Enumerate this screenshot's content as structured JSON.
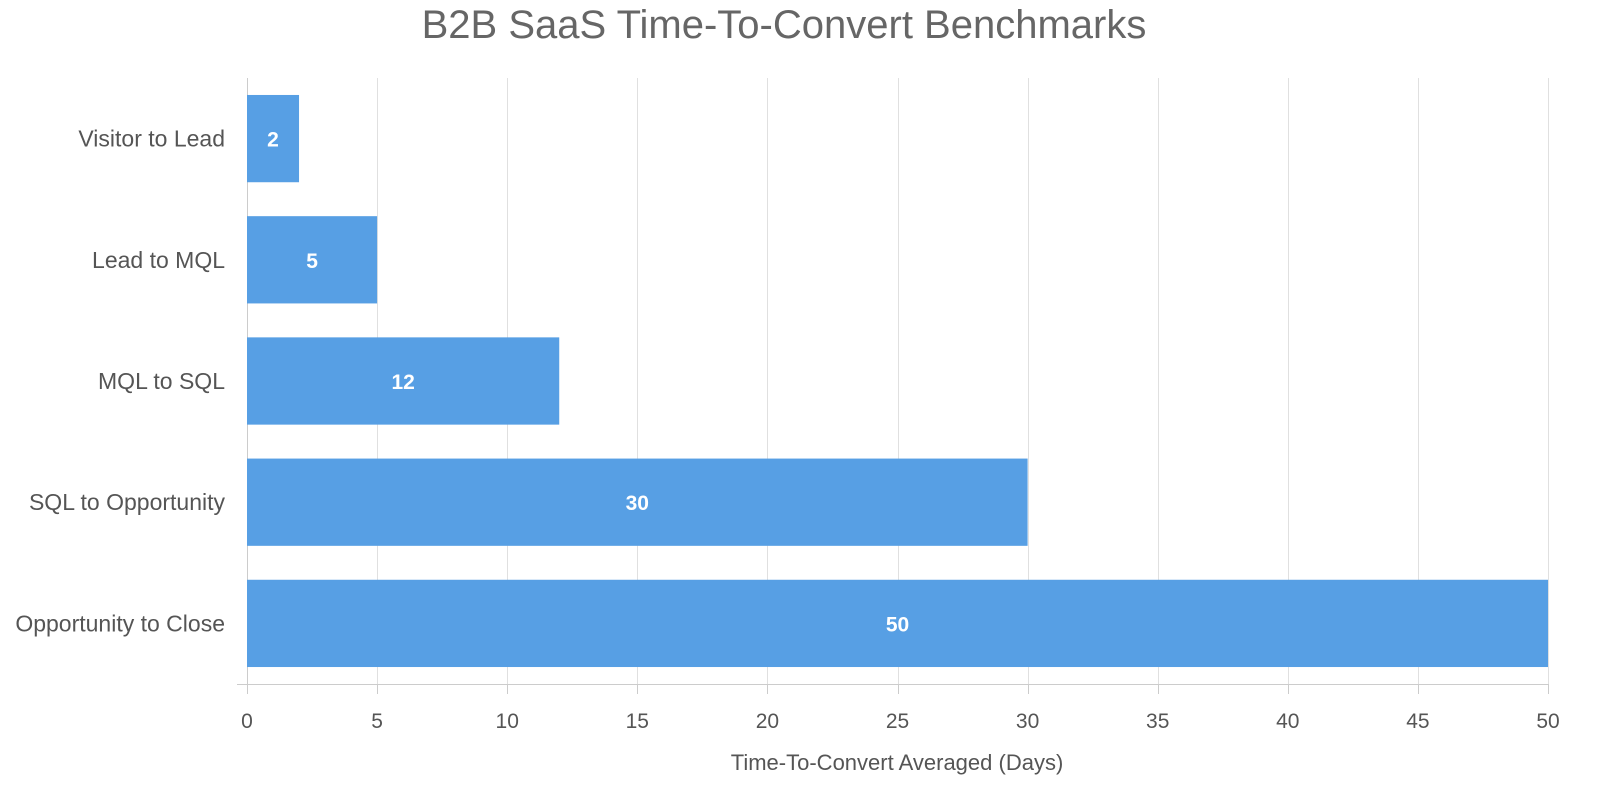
{
  "chart_data": {
    "type": "bar",
    "orientation": "horizontal",
    "title": "B2B SaaS Time-To-Convert Benchmarks",
    "xlabel": "Time-To-Convert Averaged (Days)",
    "ylabel": "",
    "categories": [
      "Visitor to Lead",
      "Lead to MQL",
      "MQL to SQL",
      "SQL to Opportunity",
      "Opportunity to Close"
    ],
    "values": [
      2,
      5,
      12,
      30,
      50
    ],
    "value_labels": [
      "2",
      "5",
      "12",
      "30",
      "50"
    ],
    "xlim": [
      0,
      50
    ],
    "x_ticks": [
      0,
      5,
      10,
      15,
      20,
      25,
      30,
      35,
      40,
      45,
      50
    ],
    "grid": true,
    "legend": "none",
    "colors": {
      "bar": "#579fe4",
      "grid": "#e0e0e0",
      "text": "#555555",
      "title": "#666666",
      "value_label": "#ffffff"
    }
  }
}
